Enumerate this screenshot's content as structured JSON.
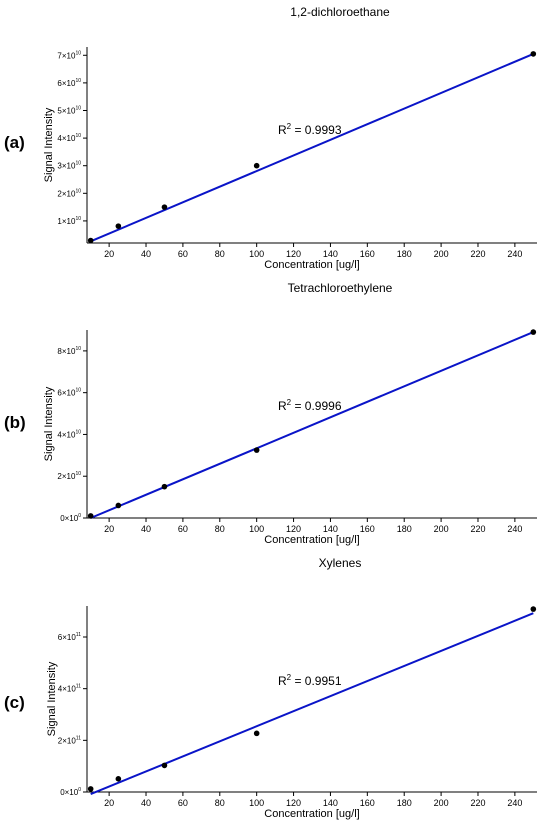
{
  "chart_data": [
    {
      "panel": "(a)",
      "type": "scatter",
      "title": "1,2-dichloroethane",
      "xlabel": "Concentration [ug/l]",
      "ylabel": "Signal Intensity",
      "xlim": [
        8,
        252
      ],
      "ylim": [
        2000000000,
        73000000000
      ],
      "xticks": [
        20,
        40,
        60,
        80,
        100,
        120,
        140,
        160,
        180,
        200,
        220,
        240
      ],
      "yticks": [
        {
          "value": 10000000000,
          "mant": "1×10",
          "exp": "10"
        },
        {
          "value": 20000000000,
          "mant": "2×10",
          "exp": "10"
        },
        {
          "value": 30000000000,
          "mant": "3×10",
          "exp": "10"
        },
        {
          "value": 40000000000,
          "mant": "4×10",
          "exp": "10"
        },
        {
          "value": 50000000000,
          "mant": "5×10",
          "exp": "10"
        },
        {
          "value": 60000000000,
          "mant": "6×10",
          "exp": "10"
        },
        {
          "value": 70000000000,
          "mant": "7×10",
          "exp": "10"
        }
      ],
      "points": {
        "x": [
          10,
          25,
          50,
          100,
          250
        ],
        "y": [
          2900000000,
          8100000000,
          15000000000,
          30000000000,
          70500000000
        ]
      },
      "fit_line": {
        "x": [
          10,
          250
        ],
        "y": [
          2600000000,
          70500000000
        ]
      },
      "annotation": {
        "label": "R",
        "sup": "2",
        "value": " = 0.9993"
      },
      "grid": false,
      "legend": "none",
      "colors": {
        "line": "#0a14c8",
        "marker": "#000000"
      }
    },
    {
      "panel": "(b)",
      "type": "scatter",
      "title": "Tetrachloroethylene",
      "xlabel": "Concentration [ug/l]",
      "ylabel": "Signal Intensity",
      "xlim": [
        8,
        252
      ],
      "ylim": [
        0,
        90000000000
      ],
      "xticks": [
        20,
        40,
        60,
        80,
        100,
        120,
        140,
        160,
        180,
        200,
        220,
        240
      ],
      "yticks": [
        {
          "value": 0,
          "mant": "0×10",
          "exp": "0"
        },
        {
          "value": 20000000000,
          "mant": "2×10",
          "exp": "10"
        },
        {
          "value": 40000000000,
          "mant": "4×10",
          "exp": "10"
        },
        {
          "value": 60000000000,
          "mant": "6×10",
          "exp": "10"
        },
        {
          "value": 80000000000,
          "mant": "8×10",
          "exp": "10"
        }
      ],
      "points": {
        "x": [
          10,
          25,
          50,
          100,
          250
        ],
        "y": [
          1000000000,
          6000000000,
          15000000000,
          32500000000,
          89000000000
        ]
      },
      "fit_line": {
        "x": [
          10,
          250
        ],
        "y": [
          0,
          89000000000
        ]
      },
      "annotation": {
        "label": "R",
        "sup": "2",
        "value": " = 0.9996"
      },
      "grid": false,
      "legend": "none",
      "colors": {
        "line": "#0a14c8",
        "marker": "#000000"
      }
    },
    {
      "panel": "(c)",
      "type": "scatter",
      "title": "Xylenes",
      "xlabel": "Concentration [ug/l]",
      "ylabel": "Signal Intensity",
      "xlim": [
        8,
        252
      ],
      "ylim": [
        0,
        720000000000
      ],
      "xticks": [
        20,
        40,
        60,
        80,
        100,
        120,
        140,
        160,
        180,
        200,
        220,
        240
      ],
      "yticks": [
        {
          "value": 0,
          "mant": "0×10",
          "exp": "0"
        },
        {
          "value": 200000000000,
          "mant": "2×10",
          "exp": "11"
        },
        {
          "value": 400000000000,
          "mant": "4×10",
          "exp": "11"
        },
        {
          "value": 600000000000,
          "mant": "6×10",
          "exp": "11"
        }
      ],
      "points": {
        "x": [
          10,
          25,
          50,
          100,
          250
        ],
        "y": [
          12000000000,
          51000000000,
          103000000000,
          227000000000,
          708000000000
        ]
      },
      "fit_line": {
        "x": [
          10,
          250
        ],
        "y": [
          -8000000000,
          692000000000
        ]
      },
      "annotation": {
        "label": "R",
        "sup": "2",
        "value": " = 0.9951"
      },
      "grid": false,
      "legend": "none",
      "colors": {
        "line": "#0a14c8",
        "marker": "#000000"
      }
    }
  ]
}
